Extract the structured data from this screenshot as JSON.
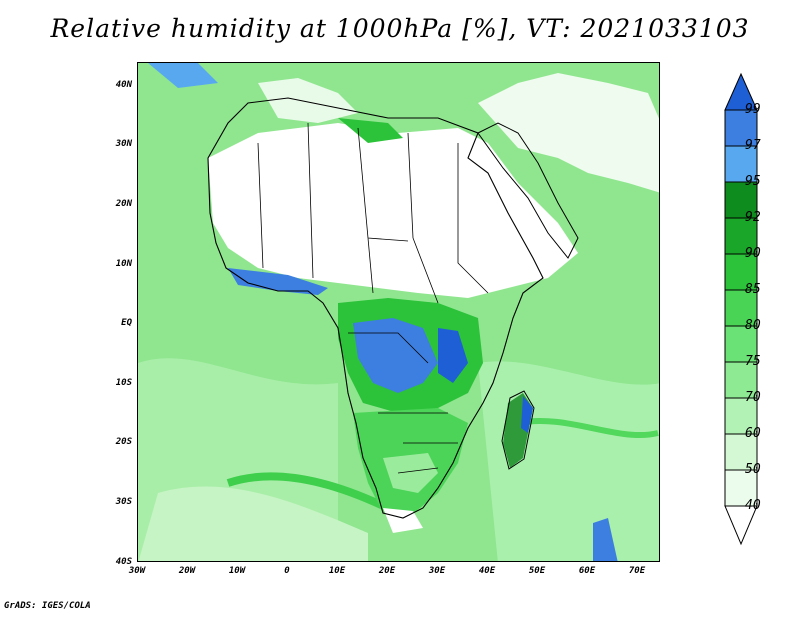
{
  "title": "Relative humidity at 1000hPa [%], VT: 2021033103",
  "footer": "GrADS: IGES/COLA",
  "map": {
    "region": "Africa",
    "lon_range": [
      -30,
      75
    ],
    "lat_range": [
      -40,
      45
    ],
    "lat_ticks": [
      "40N",
      "30N",
      "20N",
      "10N",
      "EQ",
      "10S",
      "20S",
      "30S",
      "40S"
    ],
    "lon_ticks": [
      "30W",
      "20W",
      "10W",
      "0",
      "10E",
      "20E",
      "30E",
      "40E",
      "50E",
      "60E",
      "70E"
    ]
  },
  "colorbar": {
    "levels": [
      "99",
      "97",
      "95",
      "92",
      "90",
      "85",
      "80",
      "75",
      "70",
      "60",
      "50",
      "40"
    ],
    "colors": [
      "#1f5fd6",
      "#3d7fe0",
      "#58a8f0",
      "#0f8c1e",
      "#1aa628",
      "#2cc23a",
      "#49d455",
      "#6be275",
      "#8eeb93",
      "#b3f2b5",
      "#d3f8d3",
      "#ecfcec"
    ],
    "extend": "both"
  }
}
